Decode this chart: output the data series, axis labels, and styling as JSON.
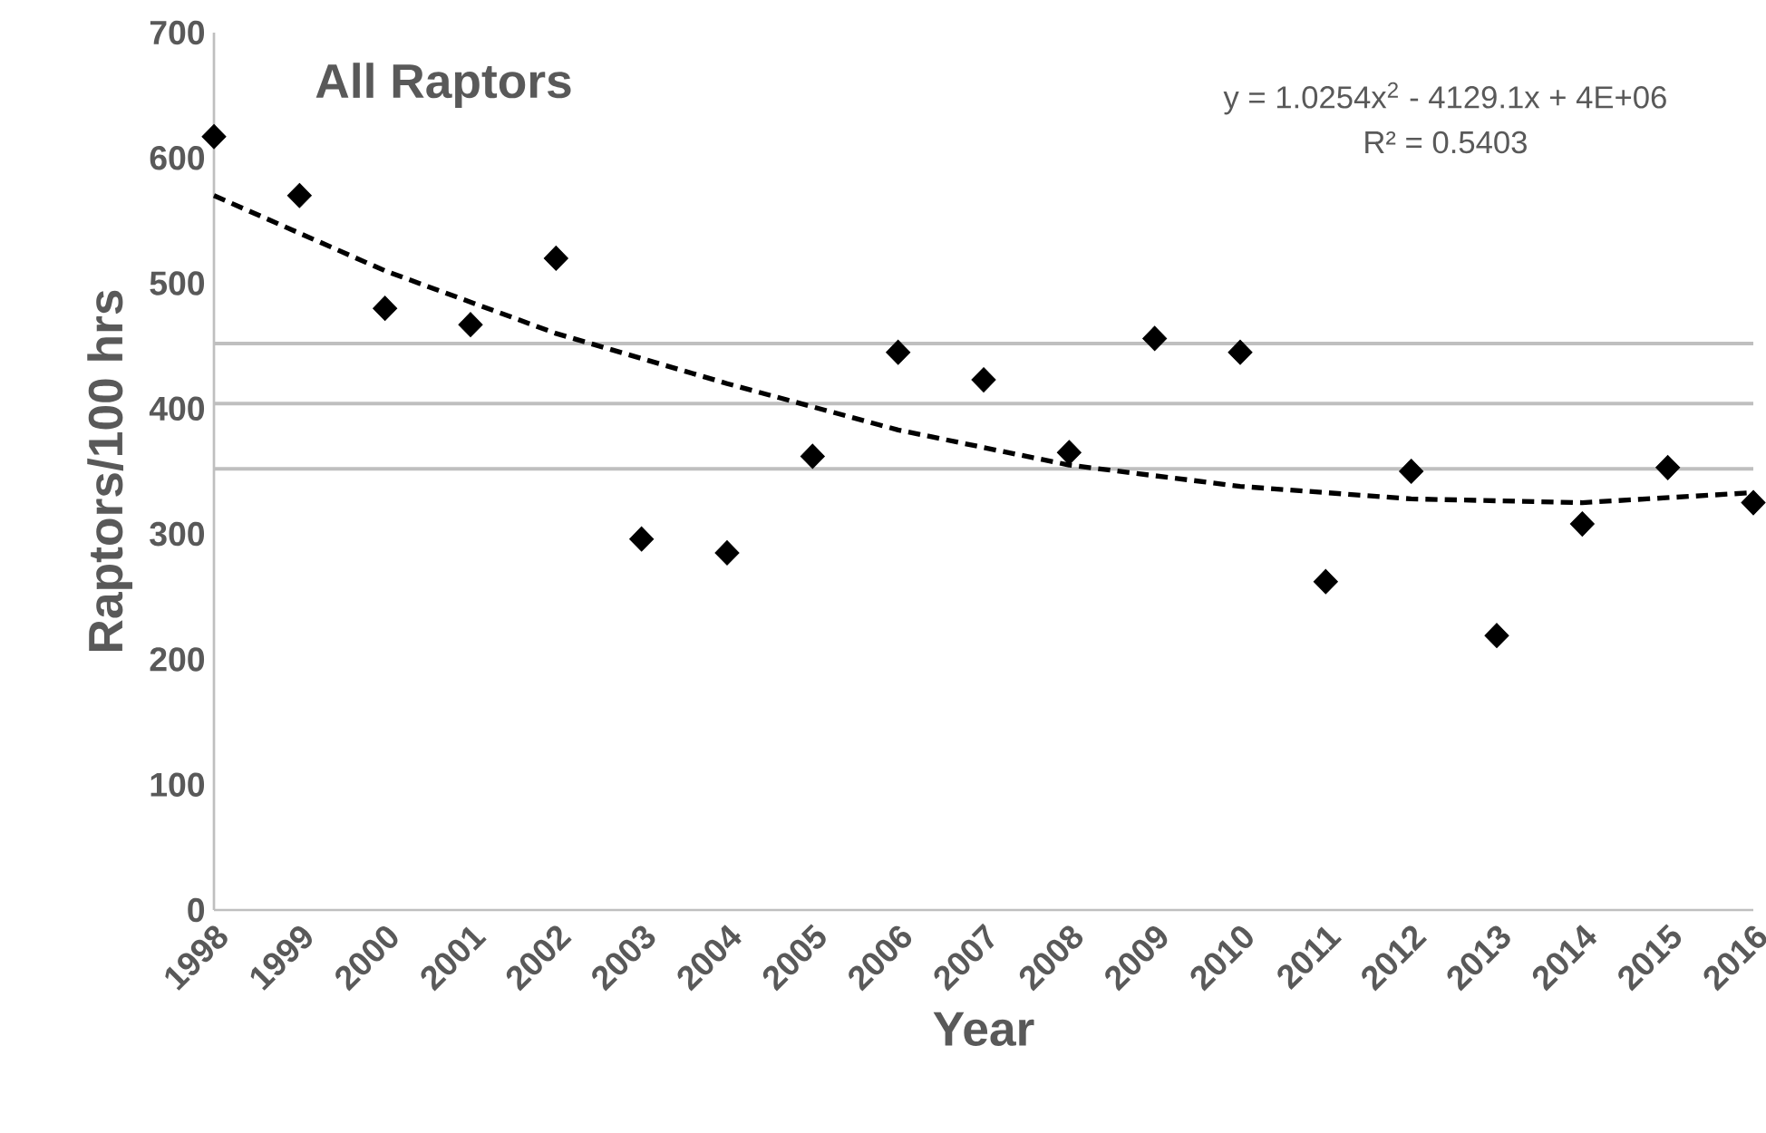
{
  "chart_data": {
    "type": "scatter",
    "title": "All Raptors",
    "xlabel": "Year",
    "ylabel": "Raptors/100 hrs",
    "x": [
      1998,
      1999,
      2000,
      2001,
      2002,
      2003,
      2004,
      2005,
      2006,
      2007,
      2008,
      2009,
      2010,
      2011,
      2012,
      2013,
      2014,
      2015,
      2016
    ],
    "series": [
      {
        "color": "#000000",
        "marker": "diamond",
        "values": [
          617,
          570,
          480,
          467,
          520,
          296,
          285,
          362,
          445,
          423,
          365,
          456,
          445,
          262,
          350,
          219,
          308,
          353,
          325
        ]
      },
      {
        "type": "line",
        "color": "#000000",
        "marker": "none",
        "line_style": "dashed",
        "x": [
          1998,
          2000,
          2002,
          2004,
          2006,
          2008,
          2010,
          2012,
          2014,
          2016
        ],
        "values": [
          570,
          510,
          460,
          420,
          383,
          355,
          338,
          328,
          325,
          333
        ]
      }
    ],
    "annotations": [
      "y = 1.0254x$^{2}$ - 4129.1x + 4E+06",
      "R² = 0.5403"
    ],
    "ref_lines": [
      {
        "axis": "y",
        "value": 452,
        "color": "#bfbfbf"
      },
      {
        "axis": "y",
        "value": 404,
        "color": "#bfbfbf"
      },
      {
        "axis": "y",
        "value": 352,
        "color": "#bfbfbf"
      }
    ],
    "xlim": [
      1998,
      2016
    ],
    "ylim": [
      0,
      700
    ],
    "xticks": [
      1998,
      1999,
      2000,
      2001,
      2002,
      2003,
      2004,
      2005,
      2006,
      2007,
      2008,
      2009,
      2010,
      2011,
      2012,
      2013,
      2014,
      2015,
      2016
    ],
    "yticks": [
      0,
      100,
      200,
      300,
      400,
      500,
      600,
      700
    ],
    "grid": false
  }
}
